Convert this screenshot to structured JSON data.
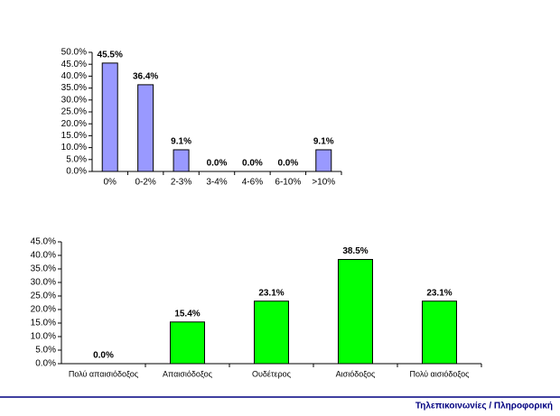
{
  "chart_data": [
    {
      "type": "bar",
      "categories": [
        "0%",
        "0-2%",
        "2-3%",
        "3-4%",
        "4-6%",
        "6-10%",
        ">10%"
      ],
      "values": [
        45.5,
        36.4,
        9.1,
        0.0,
        0.0,
        0.0,
        9.1
      ],
      "value_labels": [
        "45.5%",
        "36.4%",
        "9.1%",
        "0.0%",
        "0.0%",
        "0.0%",
        "9.1%"
      ],
      "color": "#9999ff",
      "ylim": [
        0,
        50
      ],
      "yticks": [
        {
          "value": 0,
          "label": "0.0%"
        },
        {
          "value": 5,
          "label": "5.0%"
        },
        {
          "value": 10,
          "label": "10.0%"
        },
        {
          "value": 15,
          "label": "15.0%"
        },
        {
          "value": 20,
          "label": "20.0%"
        },
        {
          "value": 25,
          "label": "25.0%"
        },
        {
          "value": 30,
          "label": "30.0%"
        },
        {
          "value": 35,
          "label": "35.0%"
        },
        {
          "value": 40,
          "label": "40.0%"
        },
        {
          "value": 45,
          "label": "45.0%"
        },
        {
          "value": 50,
          "label": "50.0%"
        }
      ]
    },
    {
      "type": "bar",
      "categories": [
        "Πολύ απαισιόδοξος",
        "Απαισιόδοξος",
        "Ουδέτερος",
        "Αισιόδοξος",
        "Πολύ αισιόδοξος"
      ],
      "values": [
        0.0,
        15.4,
        23.1,
        38.5,
        23.1
      ],
      "value_labels": [
        "0.0%",
        "15.4%",
        "23.1%",
        "38.5%",
        "23.1%"
      ],
      "color": "#00ff00",
      "ylim": [
        0,
        45
      ],
      "yticks": [
        {
          "value": 0,
          "label": "0.0%"
        },
        {
          "value": 5,
          "label": "5.0%"
        },
        {
          "value": 10,
          "label": "10.0%"
        },
        {
          "value": 15,
          "label": "15.0%"
        },
        {
          "value": 20,
          "label": "20.0%"
        },
        {
          "value": 25,
          "label": "25.0%"
        },
        {
          "value": 30,
          "label": "30.0%"
        },
        {
          "value": 35,
          "label": "35.0%"
        },
        {
          "value": 40,
          "label": "40.0%"
        },
        {
          "value": 45,
          "label": "45.0%"
        }
      ]
    }
  ],
  "footer": {
    "text": "Τηλεπικοινωνίες / Πληροφορική"
  }
}
